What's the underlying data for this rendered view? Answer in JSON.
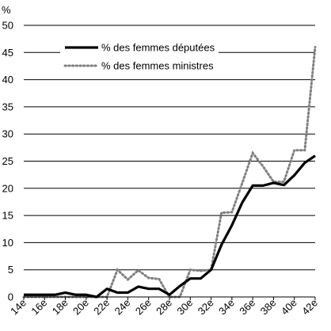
{
  "chart_data": {
    "type": "line",
    "title": "",
    "xlabel": "",
    "ylabel": "%",
    "ylim": [
      0,
      50
    ],
    "yticks": [
      0,
      5,
      10,
      15,
      20,
      25,
      30,
      35,
      40,
      45,
      50
    ],
    "grid": "horizontal",
    "legend_position": "top-center",
    "xlim": [
      14,
      42
    ],
    "xtick_labels": [
      "14e",
      "16e",
      "18e",
      "20e",
      "22e",
      "24e",
      "26e",
      "28e",
      "30e",
      "32e",
      "34e",
      "36e",
      "38e",
      "40e",
      "42e"
    ],
    "series": [
      {
        "name": "% des femmes députées",
        "style": "solid",
        "color": "#000000",
        "x": [
          14,
          15,
          16,
          17,
          18,
          19,
          20,
          21,
          22,
          23,
          24,
          25,
          26,
          27,
          28,
          29,
          30,
          31,
          32,
          33,
          34,
          35,
          36,
          37,
          38,
          39,
          40,
          41,
          42
        ],
        "y": [
          0.4,
          0.4,
          0.4,
          0.4,
          0.8,
          0.4,
          0.4,
          0,
          1.5,
          0.8,
          0.8,
          1.9,
          1.5,
          1.5,
          0.4,
          2.0,
          3.4,
          3.4,
          5.0,
          9.6,
          13.2,
          17.4,
          20.5,
          20.5,
          21.0,
          20.6,
          22.4,
          24.7,
          26.0
        ]
      },
      {
        "name": "% des femmes ministres",
        "style": "dotted",
        "color": "#808080",
        "x": [
          14,
          15,
          16,
          17,
          18,
          19,
          20,
          21,
          22,
          23,
          24,
          25,
          26,
          27,
          28,
          29,
          30,
          31,
          32,
          33,
          34,
          35,
          36,
          37,
          38,
          39,
          40,
          41,
          42
        ],
        "y": [
          0,
          0,
          0,
          0,
          0,
          0,
          0,
          0,
          0,
          5.0,
          3.2,
          4.9,
          3.5,
          3.3,
          0,
          0,
          5.0,
          4.8,
          5.0,
          15.5,
          15.6,
          21.0,
          26.5,
          24.0,
          21.2,
          21.2,
          27.0,
          27.0,
          46.0
        ]
      }
    ]
  },
  "colors": {
    "axis": "#000000",
    "grid": "#000000",
    "series_solid": "#000000",
    "series_dotted": "#808080"
  }
}
